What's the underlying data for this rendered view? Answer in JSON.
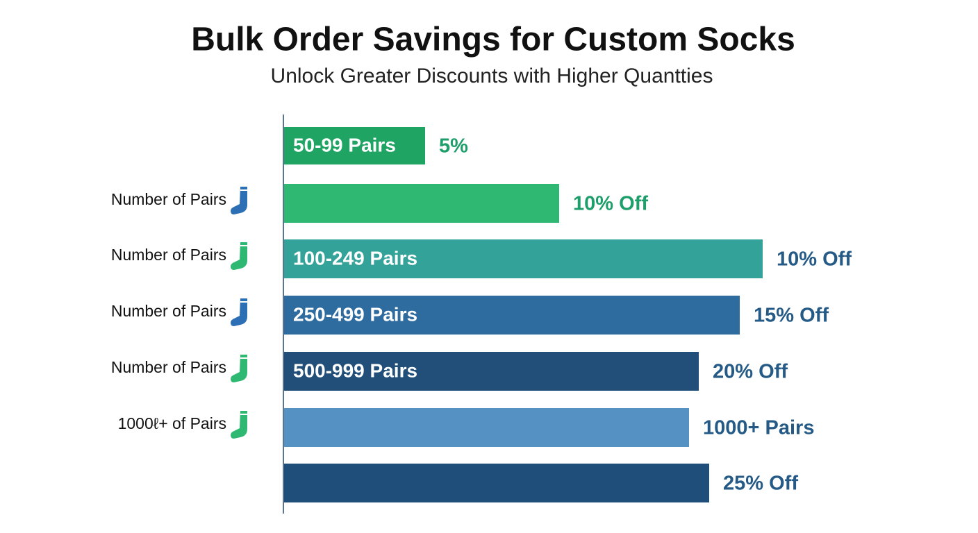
{
  "chart_data": {
    "type": "barh",
    "title": "Bulk Order Savings for Custom Socks",
    "subtitle": "Unlock Greater Discounts with Higher Quantties",
    "categories": [
      null,
      "Number of Pairs",
      "Number of Pairs",
      "Number of Pairs",
      "Number of Pairs",
      "1000ℓ+ of Pairs",
      null
    ],
    "bar_labels": [
      "50-99 Pairs",
      null,
      "100-249 Pairs",
      "250-499 Pairs",
      "500-999 Pairs",
      null,
      null
    ],
    "end_labels": [
      "5%",
      "10% Off",
      "10% Off",
      "15% Off",
      "20% Off",
      "1000+ Pairs",
      "25% Off"
    ],
    "values": [
      204,
      397,
      690,
      657,
      598,
      584,
      613
    ],
    "xlim": [
      0,
      700
    ],
    "colors": [
      "#1fa463",
      "#2fb872",
      "#33a39a",
      "#2e6b9e",
      "#224f7a",
      "#5591c2",
      "#1f4e7a"
    ],
    "end_label_colors": [
      "#1e9e6a",
      "#1e9e6a",
      "#245a85",
      "#245a85",
      "#245a85",
      "#245a85",
      "#245a85"
    ],
    "icon_colors": [
      "#2d6fb5",
      "#2fb872",
      "#2d6fb5",
      "#2fb872",
      "#2fb872"
    ]
  }
}
